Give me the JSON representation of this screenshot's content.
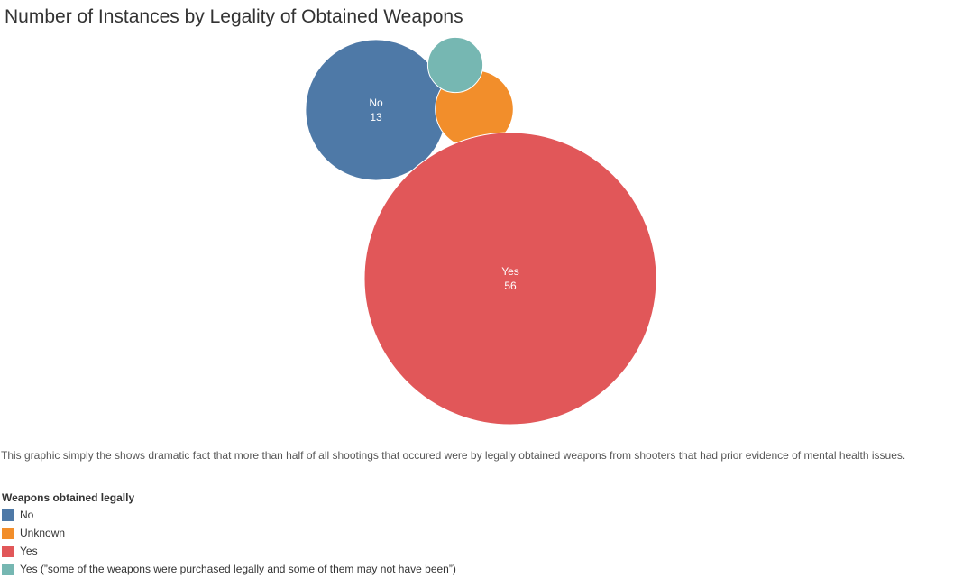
{
  "chart_data": {
    "type": "bubble",
    "title": "Number of Instances by Legality of Obtained Weapons",
    "series": [
      {
        "name": "No",
        "value": 13,
        "color": "#4e79a7",
        "show_label": true
      },
      {
        "name": "Unknown",
        "value": 4,
        "color": "#f28e2b",
        "show_label": false
      },
      {
        "name": "Yes",
        "value": 56,
        "color": "#e15759",
        "show_label": true
      },
      {
        "name": "Yes (\"some of the weapons were purchased legally and some of them may not have been\")",
        "value": 2,
        "color": "#76b7b2",
        "show_label": false
      }
    ],
    "legend": {
      "title": "Weapons obtained legally",
      "placement": "bottom-left"
    }
  },
  "caption": "This graphic simply the shows dramatic fact that more than half of all shootings that occured were by legally obtained weapons from shooters that had prior evidence of mental health issues.",
  "legend_items": [
    {
      "label": "No",
      "color": "#4e79a7"
    },
    {
      "label": "Unknown",
      "color": "#f28e2b"
    },
    {
      "label": "Yes",
      "color": "#e15759"
    },
    {
      "label": "Yes (”some of the weapons were purchased legally and some of them may not have been”)",
      "color": "#76b7b2"
    }
  ]
}
